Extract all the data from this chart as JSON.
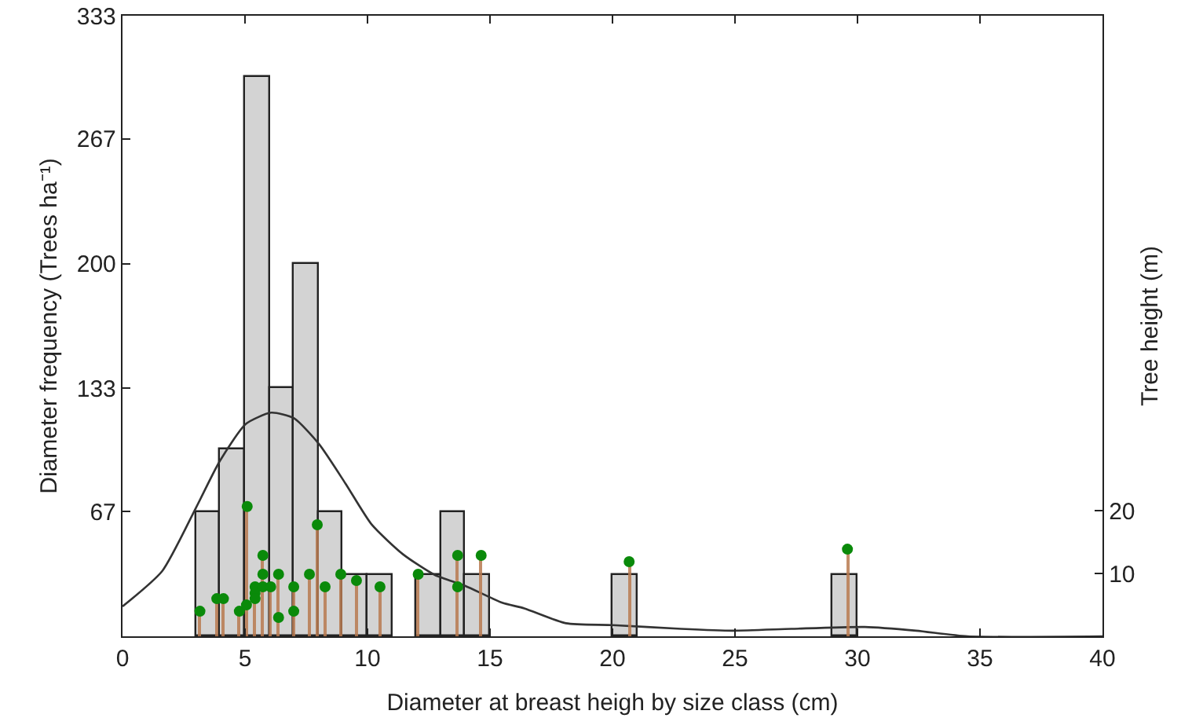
{
  "chart_data": {
    "type": "histogram",
    "xlabel": "Diameter at breast heigh by size class (cm)",
    "ylabel": "Diameter frequency (Trees ha⁻¹)",
    "y2label": "Tree height (m)",
    "bins": [
      3,
      4,
      5,
      6,
      7,
      8,
      9,
      10,
      11,
      12,
      13,
      14,
      15,
      16,
      17,
      18,
      19,
      20,
      21,
      22,
      23,
      24,
      25,
      26,
      27,
      28,
      29,
      30
    ],
    "values": [
      67,
      100,
      300,
      133,
      200,
      67,
      33,
      33,
      0,
      33,
      67,
      33,
      0,
      0,
      0,
      0,
      0,
      33,
      0,
      0,
      0,
      0,
      0,
      0,
      0,
      0,
      33
    ],
    "color": "#d3d3d3",
    "xlim": [
      0,
      40
    ],
    "xticks": [
      0,
      5,
      10,
      15,
      20,
      25,
      30,
      35,
      40
    ],
    "ylim": [
      0,
      333
    ],
    "yticks": [
      67,
      133,
      200,
      267,
      333
    ],
    "y2lim": [
      0,
      99
    ],
    "y2ticks": [
      10,
      20
    ],
    "grid": false,
    "series": [
      {
        "type": "line",
        "color": "#333333",
        "x": [
          0,
          1.62,
          3.0,
          3.97,
          5.04,
          6.07,
          7.0,
          8.03,
          9.1,
          10.17,
          11.45,
          12.74,
          14.0,
          15.5,
          16.4,
          18.1,
          20.0,
          22.8,
          24.9,
          27.3,
          30.3,
          32.4,
          34.5,
          40
        ],
        "values": [
          16,
          35,
          69,
          94,
          114,
          120,
          117,
          103,
          82,
          60,
          44,
          33,
          27,
          18,
          15,
          7,
          6,
          4,
          3,
          4,
          5,
          3,
          0,
          0
        ]
      },
      {
        "type": "lollipop",
        "axis": "y2",
        "color": "#0a8a0a",
        "marker": "circle",
        "x": [
          3.16,
          3.85,
          4.12,
          4.77,
          5.09,
          5.06,
          5.41,
          5.41,
          5.41,
          5.73,
          5.73,
          5.73,
          6.05,
          6.37,
          6.37,
          6.99,
          6.99,
          7.63,
          7.95,
          8.27,
          8.91,
          9.55,
          10.51,
          12.07,
          13.68,
          13.68,
          14.64,
          20.68,
          29.59
        ],
        "values": [
          4,
          6,
          6,
          4,
          20.7,
          5,
          7.9,
          6.9,
          6,
          12.9,
          9.9,
          7.9,
          7.9,
          9.9,
          3,
          7.9,
          4,
          9.9,
          17.8,
          7.9,
          9.9,
          8.9,
          7.9,
          9.9,
          12.9,
          7.9,
          12.9,
          11.9,
          13.9
        ]
      }
    ]
  }
}
